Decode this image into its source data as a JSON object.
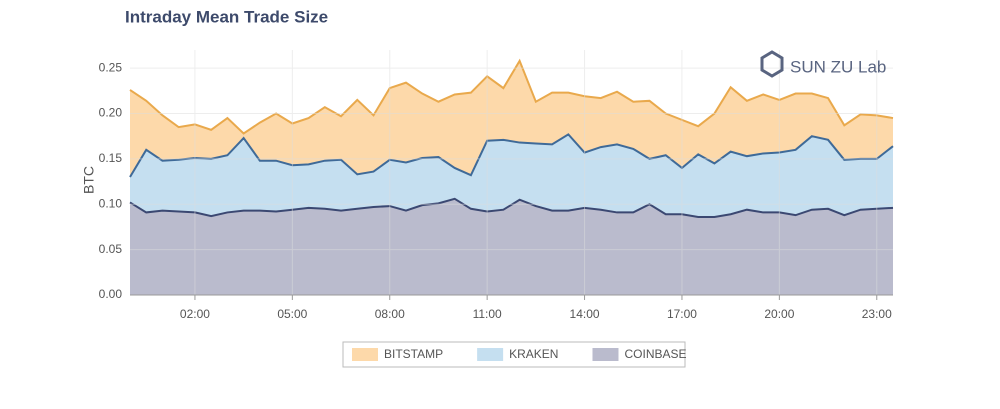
{
  "chart_data": {
    "type": "area",
    "title": "Intraday Mean Trade Size",
    "ylabel": "BTC",
    "logo": "SUN ZU Lab",
    "legend": "bottom",
    "grid": true,
    "x": [
      "00:00",
      "00:30",
      "01:00",
      "01:30",
      "02:00",
      "02:30",
      "03:00",
      "03:30",
      "04:00",
      "04:30",
      "05:00",
      "05:30",
      "06:00",
      "06:30",
      "07:00",
      "07:30",
      "08:00",
      "08:30",
      "09:00",
      "09:30",
      "10:00",
      "10:30",
      "11:00",
      "11:30",
      "12:00",
      "12:30",
      "13:00",
      "13:30",
      "14:00",
      "14:30",
      "15:00",
      "15:30",
      "16:00",
      "16:30",
      "17:00",
      "17:30",
      "18:00",
      "18:30",
      "19:00",
      "19:30",
      "20:00",
      "20:30",
      "21:00",
      "21:30",
      "22:00",
      "22:30",
      "23:00",
      "23:30"
    ],
    "xlim": [
      "00:00",
      "23:30"
    ],
    "xticks": [
      "02:00",
      "05:00",
      "08:00",
      "11:00",
      "14:00",
      "17:00",
      "20:00",
      "23:00"
    ],
    "ylim": [
      0,
      0.27
    ],
    "yticks": [
      {
        "value": 0,
        "label": "0.00"
      },
      {
        "value": 0.05,
        "label": "0.05"
      },
      {
        "value": 0.1,
        "label": "0.10"
      },
      {
        "value": 0.15,
        "label": "0.15"
      },
      {
        "value": 0.2,
        "label": "0.20"
      },
      {
        "value": 0.25,
        "label": "0.25"
      }
    ],
    "series": [
      {
        "name": "BITSTAMP",
        "color": "#e9a94c",
        "fill": "#fdd9aa",
        "values": [
          0.226,
          0.214,
          0.198,
          0.185,
          0.188,
          0.182,
          0.195,
          0.178,
          0.19,
          0.2,
          0.189,
          0.195,
          0.207,
          0.197,
          0.215,
          0.198,
          0.228,
          0.234,
          0.222,
          0.213,
          0.221,
          0.223,
          0.241,
          0.228,
          0.258,
          0.213,
          0.223,
          0.223,
          0.219,
          0.217,
          0.224,
          0.213,
          0.214,
          0.2,
          0.193,
          0.186,
          0.2,
          0.229,
          0.214,
          0.221,
          0.215,
          0.222,
          0.222,
          0.217,
          0.187,
          0.199,
          0.198,
          0.195
        ]
      },
      {
        "name": "KRAKEN",
        "color": "#3f6a98",
        "fill": "#c5dff0",
        "values": [
          0.13,
          0.16,
          0.148,
          0.149,
          0.151,
          0.15,
          0.154,
          0.173,
          0.148,
          0.148,
          0.143,
          0.144,
          0.148,
          0.149,
          0.133,
          0.136,
          0.149,
          0.146,
          0.151,
          0.152,
          0.14,
          0.132,
          0.17,
          0.171,
          0.168,
          0.167,
          0.166,
          0.177,
          0.157,
          0.163,
          0.166,
          0.161,
          0.15,
          0.154,
          0.14,
          0.155,
          0.145,
          0.158,
          0.153,
          0.156,
          0.157,
          0.16,
          0.175,
          0.171,
          0.149,
          0.15,
          0.15,
          0.164
        ]
      },
      {
        "name": "COINBASE",
        "color": "#3b4872",
        "fill": "#babbcd",
        "values": [
          0.102,
          0.091,
          0.093,
          0.092,
          0.091,
          0.087,
          0.091,
          0.093,
          0.093,
          0.092,
          0.094,
          0.096,
          0.095,
          0.093,
          0.095,
          0.097,
          0.098,
          0.093,
          0.099,
          0.101,
          0.106,
          0.095,
          0.092,
          0.094,
          0.105,
          0.098,
          0.093,
          0.093,
          0.096,
          0.094,
          0.091,
          0.091,
          0.1,
          0.089,
          0.089,
          0.086,
          0.086,
          0.089,
          0.094,
          0.091,
          0.091,
          0.088,
          0.094,
          0.095,
          0.088,
          0.094,
          0.095,
          0.096
        ]
      }
    ]
  }
}
